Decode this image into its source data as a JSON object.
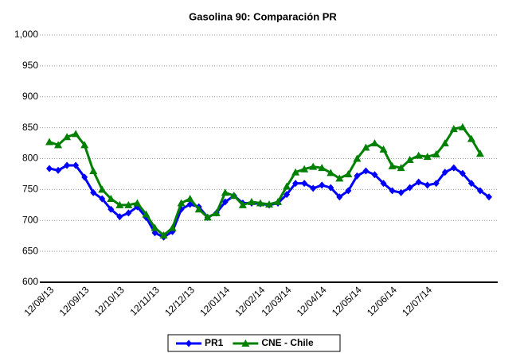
{
  "chart_data": {
    "type": "line",
    "title": "Gasolina 90: Comparación PR",
    "categories": [
      "12/08/13",
      null,
      null,
      null,
      "12/09/13",
      null,
      null,
      null,
      "12/10/13",
      null,
      null,
      null,
      "12/11/13",
      null,
      null,
      null,
      "12/12/13",
      null,
      null,
      null,
      "12/01/14",
      null,
      null,
      null,
      "12/02/14",
      null,
      null,
      "12/03/14",
      null,
      null,
      null,
      "12/04/14",
      null,
      null,
      null,
      "12/05/14",
      null,
      null,
      null,
      "12/06/14",
      null,
      null,
      null,
      "12/07/14",
      null,
      null,
      null,
      null,
      null,
      null,
      null
    ],
    "series": [
      {
        "name": "PR1",
        "color": "#0000ff",
        "marker": "diamond",
        "values": [
          784,
          781,
          789,
          789,
          770,
          745,
          735,
          718,
          706,
          712,
          722,
          705,
          680,
          673,
          682,
          718,
          726,
          722,
          705,
          712,
          730,
          740,
          728,
          728,
          727,
          725,
          728,
          742,
          760,
          760,
          752,
          757,
          753,
          738,
          748,
          772,
          780,
          774,
          760,
          748,
          745,
          753,
          762,
          757,
          760,
          778,
          785,
          776,
          760,
          748,
          738
        ]
      },
      {
        "name": "CNE - Chile",
        "color": "#008000",
        "marker": "triangle",
        "values": [
          827,
          822,
          835,
          840,
          822,
          780,
          750,
          735,
          725,
          725,
          728,
          710,
          688,
          676,
          688,
          728,
          735,
          718,
          705,
          712,
          745,
          740,
          725,
          730,
          728,
          726,
          730,
          755,
          778,
          783,
          787,
          785,
          777,
          768,
          775,
          800,
          818,
          825,
          815,
          788,
          785,
          798,
          805,
          803,
          807,
          825,
          848,
          851,
          832,
          808,
          null
        ]
      }
    ],
    "ylim": [
      600,
      1000
    ],
    "yticks": [
      600,
      650,
      700,
      750,
      800,
      850,
      900,
      950,
      {
        "value": 1000,
        "label": "1,000"
      }
    ],
    "grid": true,
    "legend": "bottom"
  }
}
